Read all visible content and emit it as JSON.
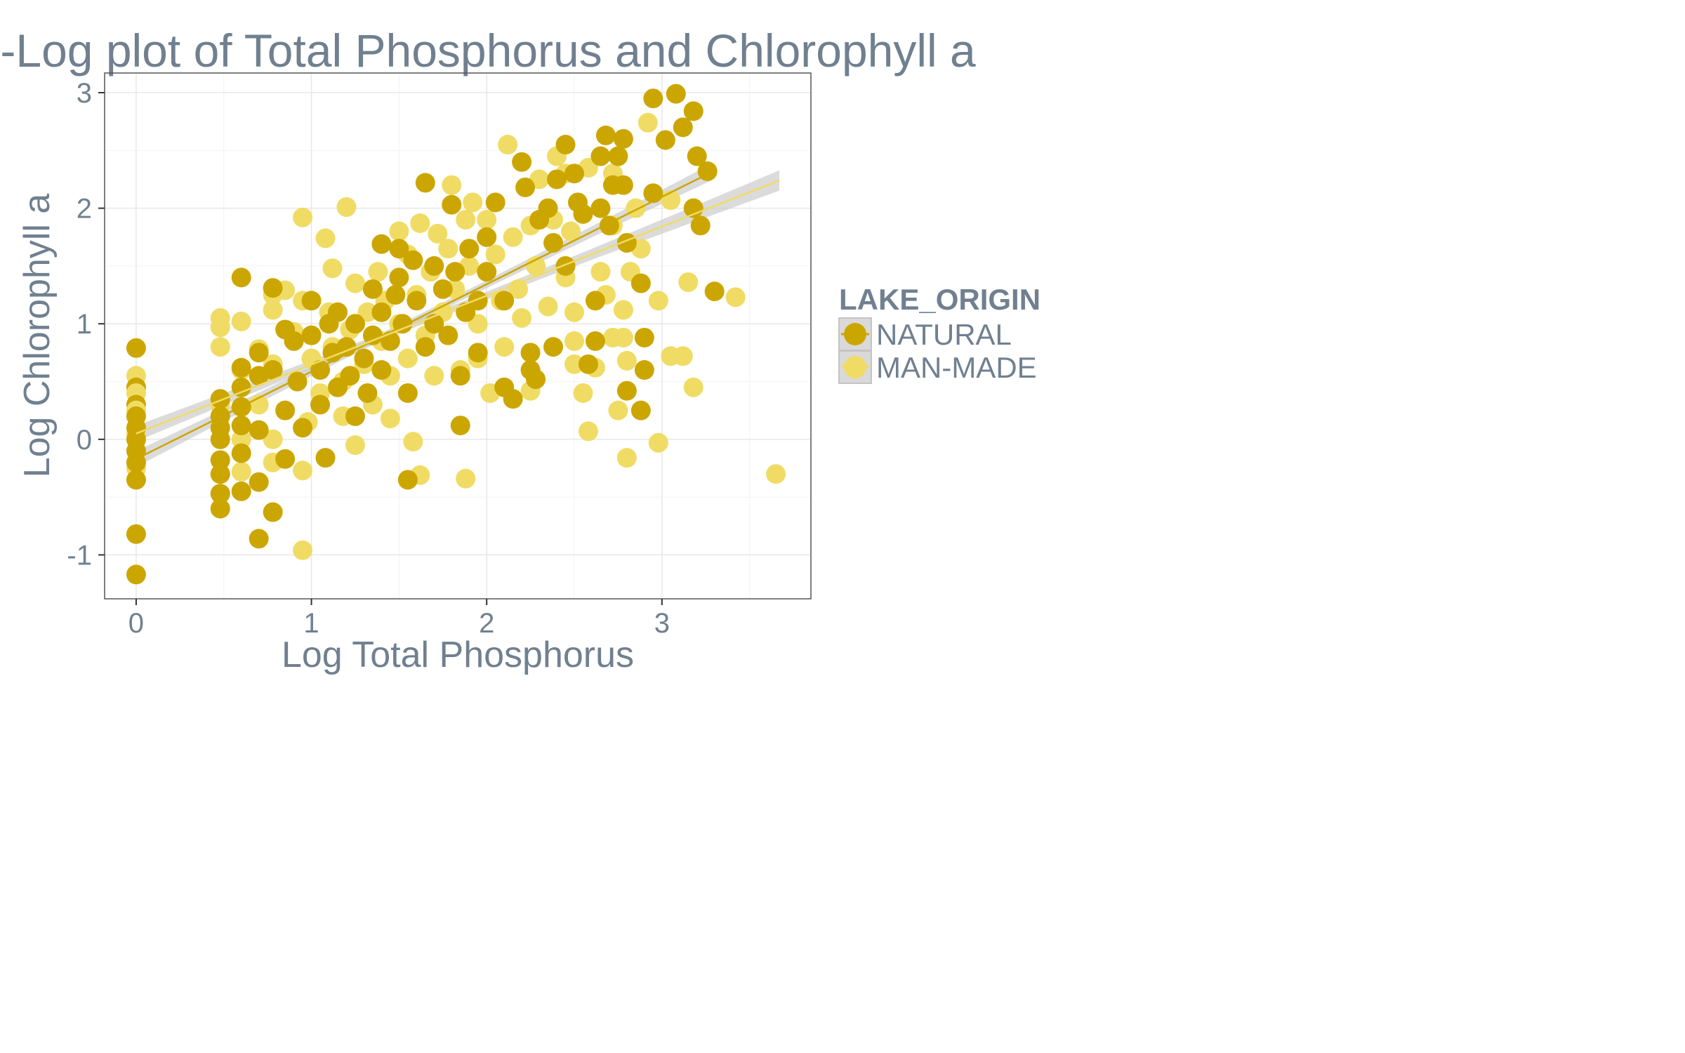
{
  "chart_data": {
    "type": "scatter",
    "title": "Log-Log plot of Total Phosphorus and Chlorophyll a",
    "xlabel": "Log Total Phosphorus",
    "ylabel": "Log Chlorophyll a",
    "xlim": [
      -0.18,
      3.85
    ],
    "ylim": [
      -1.38,
      3.17
    ],
    "x_ticks": [
      "0",
      "1",
      "2",
      "3"
    ],
    "y_ticks": [
      "-1",
      "0",
      "1",
      "2",
      "3"
    ],
    "grid": true,
    "legend": {
      "title": "LAKE_ORIGIN",
      "placement": "right",
      "entries": [
        "NATURAL",
        "MAN-MADE"
      ]
    },
    "colors": {
      "NATURAL": "#CCA600",
      "MAN-MADE": "#F0DC64",
      "text": "#708090",
      "ribbon": "#c8c8c8"
    },
    "series": [
      {
        "name": "NATURAL",
        "points": [
          [
            0.0,
            0.79
          ],
          [
            0.0,
            0.45
          ],
          [
            0.0,
            0.3
          ],
          [
            0.0,
            0.2
          ],
          [
            0.0,
            0.1
          ],
          [
            0.0,
            0.0
          ],
          [
            0.0,
            -0.1
          ],
          [
            0.0,
            -0.2
          ],
          [
            0.0,
            -0.35
          ],
          [
            0.0,
            -0.82
          ],
          [
            0.0,
            -1.17
          ],
          [
            0.48,
            0.35
          ],
          [
            0.48,
            0.2
          ],
          [
            0.48,
            0.1
          ],
          [
            0.48,
            0.0
          ],
          [
            0.48,
            -0.18
          ],
          [
            0.48,
            -0.3
          ],
          [
            0.48,
            -0.47
          ],
          [
            0.48,
            -0.6
          ],
          [
            0.6,
            1.4
          ],
          [
            0.6,
            0.62
          ],
          [
            0.6,
            0.45
          ],
          [
            0.6,
            0.28
          ],
          [
            0.6,
            0.12
          ],
          [
            0.6,
            -0.12
          ],
          [
            0.6,
            -0.45
          ],
          [
            0.7,
            0.75
          ],
          [
            0.7,
            0.55
          ],
          [
            0.7,
            0.08
          ],
          [
            0.7,
            -0.37
          ],
          [
            0.7,
            -0.86
          ],
          [
            0.78,
            1.31
          ],
          [
            0.78,
            0.6
          ],
          [
            0.78,
            -0.63
          ],
          [
            0.85,
            0.95
          ],
          [
            0.85,
            0.25
          ],
          [
            0.85,
            -0.17
          ],
          [
            0.9,
            0.85
          ],
          [
            0.92,
            0.5
          ],
          [
            0.95,
            0.1
          ],
          [
            1.0,
            1.2
          ],
          [
            1.0,
            0.9
          ],
          [
            1.05,
            0.6
          ],
          [
            1.05,
            0.3
          ],
          [
            1.08,
            -0.16
          ],
          [
            1.1,
            1.0
          ],
          [
            1.12,
            0.75
          ],
          [
            1.15,
            0.45
          ],
          [
            1.15,
            1.1
          ],
          [
            1.2,
            0.8
          ],
          [
            1.22,
            0.55
          ],
          [
            1.25,
            0.2
          ],
          [
            1.25,
            1.0
          ],
          [
            1.3,
            0.7
          ],
          [
            1.32,
            0.4
          ],
          [
            1.35,
            1.3
          ],
          [
            1.35,
            0.9
          ],
          [
            1.4,
            1.1
          ],
          [
            1.4,
            0.6
          ],
          [
            1.4,
            1.69
          ],
          [
            1.45,
            0.85
          ],
          [
            1.48,
            1.25
          ],
          [
            1.5,
            1.4
          ],
          [
            1.5,
            1.65
          ],
          [
            1.52,
            1.0
          ],
          [
            1.55,
            0.4
          ],
          [
            1.55,
            -0.35
          ],
          [
            1.58,
            1.55
          ],
          [
            1.6,
            1.2
          ],
          [
            1.65,
            2.22
          ],
          [
            1.65,
            0.8
          ],
          [
            1.7,
            1.5
          ],
          [
            1.7,
            1.0
          ],
          [
            1.75,
            1.3
          ],
          [
            1.78,
            0.9
          ],
          [
            1.8,
            2.03
          ],
          [
            1.82,
            1.45
          ],
          [
            1.85,
            0.55
          ],
          [
            1.85,
            0.12
          ],
          [
            1.88,
            1.1
          ],
          [
            1.9,
            1.65
          ],
          [
            1.95,
            1.2
          ],
          [
            1.95,
            0.75
          ],
          [
            2.0,
            1.75
          ],
          [
            2.0,
            1.45
          ],
          [
            2.05,
            2.05
          ],
          [
            2.1,
            0.45
          ],
          [
            2.1,
            1.2
          ],
          [
            2.15,
            0.35
          ],
          [
            2.2,
            2.4
          ],
          [
            2.22,
            2.18
          ],
          [
            2.25,
            0.75
          ],
          [
            2.25,
            0.6
          ],
          [
            2.28,
            0.52
          ],
          [
            2.3,
            1.9
          ],
          [
            2.35,
            2.0
          ],
          [
            2.38,
            1.7
          ],
          [
            2.38,
            0.8
          ],
          [
            2.4,
            2.25
          ],
          [
            2.45,
            2.55
          ],
          [
            2.45,
            1.5
          ],
          [
            2.5,
            2.3
          ],
          [
            2.52,
            2.05
          ],
          [
            2.55,
            1.95
          ],
          [
            2.58,
            0.65
          ],
          [
            2.62,
            0.85
          ],
          [
            2.62,
            1.2
          ],
          [
            2.65,
            2.0
          ],
          [
            2.65,
            2.45
          ],
          [
            2.68,
            2.63
          ],
          [
            2.7,
            1.85
          ],
          [
            2.72,
            2.2
          ],
          [
            2.75,
            2.45
          ],
          [
            2.78,
            2.6
          ],
          [
            2.78,
            2.2
          ],
          [
            2.8,
            1.7
          ],
          [
            2.8,
            0.42
          ],
          [
            2.88,
            0.25
          ],
          [
            2.88,
            1.35
          ],
          [
            2.9,
            0.88
          ],
          [
            2.9,
            0.6
          ],
          [
            2.95,
            2.95
          ],
          [
            2.95,
            2.13
          ],
          [
            3.02,
            2.59
          ],
          [
            3.08,
            2.99
          ],
          [
            3.12,
            2.7
          ],
          [
            3.18,
            2.84
          ],
          [
            3.18,
            2.0
          ],
          [
            3.2,
            2.45
          ],
          [
            3.22,
            1.85
          ],
          [
            3.26,
            2.32
          ],
          [
            3.3,
            1.28
          ]
        ]
      },
      {
        "name": "MAN-MADE",
        "points": [
          [
            0.0,
            0.55
          ],
          [
            0.0,
            0.4
          ],
          [
            0.0,
            0.25
          ],
          [
            0.0,
            0.05
          ],
          [
            0.0,
            -0.25
          ],
          [
            0.48,
            1.05
          ],
          [
            0.48,
            0.97
          ],
          [
            0.48,
            0.8
          ],
          [
            0.48,
            0.3
          ],
          [
            0.6,
            1.02
          ],
          [
            0.6,
            0.6
          ],
          [
            0.6,
            0.0
          ],
          [
            0.6,
            -0.28
          ],
          [
            0.7,
            0.78
          ],
          [
            0.7,
            0.3
          ],
          [
            0.78,
            1.12
          ],
          [
            0.78,
            1.25
          ],
          [
            0.78,
            0.65
          ],
          [
            0.78,
            0.0
          ],
          [
            0.78,
            -0.2
          ],
          [
            0.85,
            1.29
          ],
          [
            0.9,
            0.93
          ],
          [
            0.95,
            1.92
          ],
          [
            0.95,
            1.2
          ],
          [
            0.95,
            -0.96
          ],
          [
            0.95,
            -0.27
          ],
          [
            0.98,
            0.15
          ],
          [
            1.0,
            0.7
          ],
          [
            1.05,
            0.4
          ],
          [
            1.08,
            1.74
          ],
          [
            1.1,
            1.1
          ],
          [
            1.12,
            1.48
          ],
          [
            1.12,
            0.8
          ],
          [
            1.18,
            0.5
          ],
          [
            1.18,
            0.2
          ],
          [
            1.2,
            2.01
          ],
          [
            1.22,
            0.95
          ],
          [
            1.25,
            1.35
          ],
          [
            1.25,
            -0.05
          ],
          [
            1.3,
            0.65
          ],
          [
            1.32,
            1.1
          ],
          [
            1.35,
            0.3
          ],
          [
            1.38,
            1.45
          ],
          [
            1.4,
            0.85
          ],
          [
            1.42,
            1.2
          ],
          [
            1.45,
            0.55
          ],
          [
            1.45,
            0.18
          ],
          [
            1.5,
            1.8
          ],
          [
            1.5,
            1.0
          ],
          [
            1.55,
            1.6
          ],
          [
            1.55,
            0.7
          ],
          [
            1.58,
            -0.02
          ],
          [
            1.6,
            1.25
          ],
          [
            1.62,
            1.87
          ],
          [
            1.62,
            -0.31
          ],
          [
            1.65,
            0.9
          ],
          [
            1.68,
            1.45
          ],
          [
            1.7,
            0.55
          ],
          [
            1.72,
            1.78
          ],
          [
            1.75,
            1.1
          ],
          [
            1.78,
            1.65
          ],
          [
            1.8,
            2.2
          ],
          [
            1.82,
            1.3
          ],
          [
            1.85,
            0.6
          ],
          [
            1.88,
            1.9
          ],
          [
            1.88,
            -0.34
          ],
          [
            1.9,
            1.5
          ],
          [
            1.92,
            2.05
          ],
          [
            1.95,
            1.0
          ],
          [
            1.95,
            0.7
          ],
          [
            2.0,
            1.9
          ],
          [
            2.02,
            0.4
          ],
          [
            2.05,
            1.6
          ],
          [
            2.08,
            1.2
          ],
          [
            2.1,
            0.8
          ],
          [
            2.12,
            2.55
          ],
          [
            2.15,
            1.75
          ],
          [
            2.18,
            1.3
          ],
          [
            2.2,
            1.05
          ],
          [
            2.25,
            1.85
          ],
          [
            2.25,
            0.42
          ],
          [
            2.28,
            1.5
          ],
          [
            2.3,
            2.25
          ],
          [
            2.35,
            1.15
          ],
          [
            2.38,
            1.9
          ],
          [
            2.4,
            2.45
          ],
          [
            2.45,
            2.3
          ],
          [
            2.45,
            1.4
          ],
          [
            2.48,
            1.8
          ],
          [
            2.5,
            0.85
          ],
          [
            2.5,
            0.65
          ],
          [
            2.5,
            1.1
          ],
          [
            2.55,
            0.4
          ],
          [
            2.58,
            0.07
          ],
          [
            2.58,
            2.35
          ],
          [
            2.62,
            0.62
          ],
          [
            2.65,
            1.45
          ],
          [
            2.68,
            1.25
          ],
          [
            2.72,
            2.3
          ],
          [
            2.72,
            1.85
          ],
          [
            2.72,
            0.88
          ],
          [
            2.75,
            0.25
          ],
          [
            2.78,
            0.88
          ],
          [
            2.78,
            1.12
          ],
          [
            2.8,
            -0.16
          ],
          [
            2.8,
            0.68
          ],
          [
            2.82,
            1.45
          ],
          [
            2.85,
            2.0
          ],
          [
            2.88,
            1.65
          ],
          [
            2.92,
            2.74
          ],
          [
            2.98,
            1.2
          ],
          [
            2.98,
            -0.03
          ],
          [
            3.05,
            0.72
          ],
          [
            3.05,
            2.07
          ],
          [
            3.12,
            0.72
          ],
          [
            3.15,
            1.36
          ],
          [
            3.18,
            0.45
          ],
          [
            3.42,
            1.23
          ],
          [
            3.65,
            -0.3
          ]
        ]
      }
    ],
    "fits": [
      {
        "name": "NATURAL",
        "x_range": [
          0.0,
          3.28
        ],
        "y_range": [
          -0.17,
          2.31
        ]
      },
      {
        "name": "MAN-MADE",
        "x_range": [
          0.0,
          3.67
        ],
        "y_range": [
          0.05,
          2.24
        ]
      }
    ]
  }
}
